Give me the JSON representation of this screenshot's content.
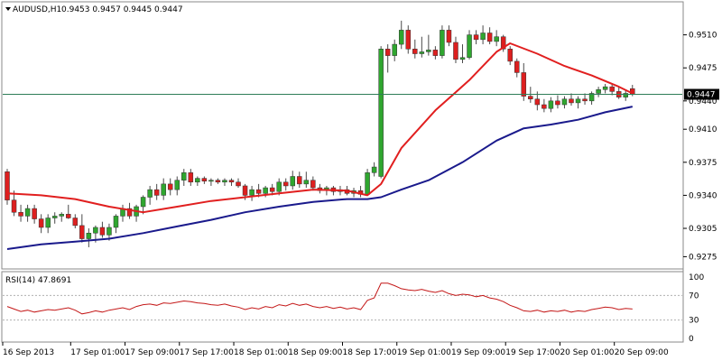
{
  "header": {
    "symbol_tf": "AUDUSD,H1",
    "ohlc_text": "0.9453 0.9457 0.9445 0.9447",
    "dropdown_icon": "triangle-down-icon"
  },
  "colors": {
    "bull": "#2fa62f",
    "bear": "#dd1f1f",
    "wick": "#4a4a4a",
    "fast_ma": "#e11f1f",
    "slow_ma": "#1a1a8c",
    "rsi": "#c41818",
    "price_line": "#2e7d57",
    "grid": "#d8d8d8",
    "frame": "#8a8a8a"
  },
  "chart_data": [
    {
      "type": "candlestick",
      "symbol": "AUDUSD",
      "timeframe": "H1",
      "current_price": "0.9447",
      "ylim": [
        0.9262,
        0.9545
      ],
      "yticks": [
        "0.9510",
        "0.9475",
        "0.9440",
        "0.9410",
        "0.9375",
        "0.9340",
        "0.9305",
        "0.9275"
      ],
      "ytick_values": [
        0.951,
        0.9475,
        0.944,
        0.941,
        0.9375,
        0.934,
        0.9305,
        0.9275
      ],
      "xticks": [
        "16 Sep 2013",
        "17 Sep 01:00",
        "17 Sep 09:00",
        "17 Sep 17:00",
        "18 Sep 01:00",
        "18 Sep 09:00",
        "18 Sep 17:00",
        "19 Sep 01:00",
        "19 Sep 09:00",
        "19 Sep 17:00",
        "20 Sep 01:00",
        "20 Sep 09:00"
      ],
      "xtick_bar_index": [
        0,
        10,
        18,
        26,
        34,
        42,
        50,
        58,
        66,
        74,
        82,
        90
      ],
      "candles": [
        [
          0.9365,
          0.9368,
          0.933,
          0.9335
        ],
        [
          0.9335,
          0.9345,
          0.9318,
          0.9322
        ],
        [
          0.9322,
          0.933,
          0.9312,
          0.9318
        ],
        [
          0.9318,
          0.933,
          0.9312,
          0.9326
        ],
        [
          0.9326,
          0.933,
          0.931,
          0.9315
        ],
        [
          0.9315,
          0.932,
          0.93,
          0.9306
        ],
        [
          0.9306,
          0.932,
          0.93,
          0.9316
        ],
        [
          0.9316,
          0.9322,
          0.931,
          0.9318
        ],
        [
          0.9318,
          0.9322,
          0.9312,
          0.932
        ],
        [
          0.932,
          0.933,
          0.9315,
          0.9316
        ],
        [
          0.9316,
          0.932,
          0.9305,
          0.9308
        ],
        [
          0.9308,
          0.932,
          0.929,
          0.9294
        ],
        [
          0.9294,
          0.9305,
          0.9285,
          0.93
        ],
        [
          0.93,
          0.9308,
          0.929,
          0.9306
        ],
        [
          0.9306,
          0.9312,
          0.9295,
          0.9298
        ],
        [
          0.9298,
          0.931,
          0.9292,
          0.9306
        ],
        [
          0.9306,
          0.932,
          0.93,
          0.9318
        ],
        [
          0.9318,
          0.933,
          0.9312,
          0.9326
        ],
        [
          0.9326,
          0.9332,
          0.9315,
          0.9318
        ],
        [
          0.9318,
          0.933,
          0.9312,
          0.9328
        ],
        [
          0.9328,
          0.934,
          0.932,
          0.9338
        ],
        [
          0.9338,
          0.935,
          0.933,
          0.9346
        ],
        [
          0.9346,
          0.9352,
          0.9335,
          0.934
        ],
        [
          0.934,
          0.9358,
          0.9335,
          0.9352
        ],
        [
          0.9352,
          0.9358,
          0.934,
          0.9346
        ],
        [
          0.9346,
          0.936,
          0.934,
          0.9356
        ],
        [
          0.9356,
          0.9368,
          0.935,
          0.9364
        ],
        [
          0.9364,
          0.9368,
          0.935,
          0.9354
        ],
        [
          0.9354,
          0.936,
          0.935,
          0.9358
        ],
        [
          0.9358,
          0.936,
          0.9352,
          0.9355
        ],
        [
          0.9355,
          0.9358,
          0.935,
          0.9356
        ],
        [
          0.9356,
          0.9358,
          0.9352,
          0.9354
        ],
        [
          0.9354,
          0.9358,
          0.935,
          0.9356
        ],
        [
          0.9356,
          0.9358,
          0.935,
          0.9354
        ],
        [
          0.9354,
          0.9358,
          0.9348,
          0.935
        ],
        [
          0.935,
          0.9352,
          0.9335,
          0.934
        ],
        [
          0.934,
          0.935,
          0.9334,
          0.9346
        ],
        [
          0.9346,
          0.9352,
          0.9338,
          0.9342
        ],
        [
          0.9342,
          0.935,
          0.9338,
          0.9348
        ],
        [
          0.9348,
          0.9352,
          0.934,
          0.9344
        ],
        [
          0.9344,
          0.9358,
          0.934,
          0.9354
        ],
        [
          0.9354,
          0.9358,
          0.9345,
          0.935
        ],
        [
          0.935,
          0.9366,
          0.9346,
          0.936
        ],
        [
          0.936,
          0.9365,
          0.9348,
          0.9352
        ],
        [
          0.9352,
          0.9365,
          0.9348,
          0.9356
        ],
        [
          0.9356,
          0.936,
          0.9345,
          0.9348
        ],
        [
          0.9348,
          0.9352,
          0.9342,
          0.9345
        ],
        [
          0.9345,
          0.935,
          0.934,
          0.9348
        ],
        [
          0.9348,
          0.935,
          0.934,
          0.9344
        ],
        [
          0.9344,
          0.935,
          0.934,
          0.9346
        ],
        [
          0.9346,
          0.935,
          0.934,
          0.9342
        ],
        [
          0.9342,
          0.9348,
          0.9338,
          0.9345
        ],
        [
          0.9345,
          0.935,
          0.9338,
          0.9341
        ],
        [
          0.9341,
          0.9368,
          0.934,
          0.9364
        ],
        [
          0.9364,
          0.9375,
          0.936,
          0.937
        ],
        [
          0.936,
          0.9498,
          0.9358,
          0.9495
        ],
        [
          0.9495,
          0.95,
          0.947,
          0.9488
        ],
        [
          0.9488,
          0.9505,
          0.9482,
          0.95
        ],
        [
          0.95,
          0.9525,
          0.9495,
          0.9515
        ],
        [
          0.9515,
          0.952,
          0.949,
          0.9495
        ],
        [
          0.9495,
          0.9505,
          0.9485,
          0.949
        ],
        [
          0.949,
          0.9508,
          0.9486,
          0.9492
        ],
        [
          0.9492,
          0.951,
          0.9488,
          0.9494
        ],
        [
          0.9494,
          0.9498,
          0.9484,
          0.9488
        ],
        [
          0.9488,
          0.952,
          0.9485,
          0.9515
        ],
        [
          0.9515,
          0.952,
          0.9498,
          0.9502
        ],
        [
          0.9502,
          0.9508,
          0.948,
          0.9484
        ],
        [
          0.9484,
          0.95,
          0.948,
          0.9486
        ],
        [
          0.9486,
          0.9515,
          0.9484,
          0.951
        ],
        [
          0.951,
          0.9515,
          0.95,
          0.9505
        ],
        [
          0.9505,
          0.952,
          0.95,
          0.9512
        ],
        [
          0.9512,
          0.9518,
          0.95,
          0.9503
        ],
        [
          0.9503,
          0.9515,
          0.9498,
          0.9508
        ],
        [
          0.9508,
          0.951,
          0.9492,
          0.9495
        ],
        [
          0.9495,
          0.9498,
          0.9478,
          0.9482
        ],
        [
          0.9482,
          0.9485,
          0.9465,
          0.947
        ],
        [
          0.947,
          0.948,
          0.944,
          0.9445
        ],
        [
          0.9445,
          0.9455,
          0.9438,
          0.9442
        ],
        [
          0.9442,
          0.945,
          0.943,
          0.9436
        ],
        [
          0.9436,
          0.9442,
          0.9428,
          0.9432
        ],
        [
          0.9432,
          0.9444,
          0.9428,
          0.944
        ],
        [
          0.944,
          0.9446,
          0.9432,
          0.9436
        ],
        [
          0.9436,
          0.9445,
          0.9432,
          0.9442
        ],
        [
          0.9442,
          0.9448,
          0.9435,
          0.9438
        ],
        [
          0.9438,
          0.9445,
          0.9432,
          0.9442
        ],
        [
          0.9442,
          0.9448,
          0.9436,
          0.944
        ],
        [
          0.944,
          0.945,
          0.9436,
          0.9448
        ],
        [
          0.9448,
          0.9455,
          0.9444,
          0.9452
        ],
        [
          0.9452,
          0.9458,
          0.9448,
          0.9455
        ],
        [
          0.9455,
          0.9458,
          0.9446,
          0.945
        ],
        [
          0.945,
          0.9455,
          0.9442,
          0.9444
        ],
        [
          0.9444,
          0.9452,
          0.944,
          0.9448
        ],
        [
          0.9453,
          0.9457,
          0.9445,
          0.9447
        ]
      ],
      "series": [
        {
          "type": "line",
          "points": [
            [
              0,
              0.9342
            ],
            [
              5,
              0.934
            ],
            [
              10,
              0.9336
            ],
            [
              15,
              0.9328
            ],
            [
              20,
              0.9322
            ],
            [
              25,
              0.9328
            ],
            [
              30,
              0.9334
            ],
            [
              35,
              0.9338
            ],
            [
              40,
              0.9342
            ],
            [
              45,
              0.9346
            ],
            [
              50,
              0.9345
            ],
            [
              53,
              0.934
            ],
            [
              55,
              0.9352
            ],
            [
              58,
              0.939
            ],
            [
              63,
              0.943
            ],
            [
              68,
              0.9462
            ],
            [
              72,
              0.9492
            ],
            [
              74,
              0.9501
            ],
            [
              78,
              0.949
            ],
            [
              82,
              0.9477
            ],
            [
              86,
              0.9467
            ],
            [
              90,
              0.9455
            ],
            [
              92,
              0.9448
            ]
          ]
        },
        {
          "type": "line",
          "points": [
            [
              0,
              0.9283
            ],
            [
              5,
              0.9288
            ],
            [
              10,
              0.9291
            ],
            [
              15,
              0.9294
            ],
            [
              20,
              0.93
            ],
            [
              25,
              0.9307
            ],
            [
              30,
              0.9314
            ],
            [
              35,
              0.9322
            ],
            [
              40,
              0.9328
            ],
            [
              45,
              0.9333
            ],
            [
              50,
              0.9336
            ],
            [
              53,
              0.9336
            ],
            [
              55,
              0.9338
            ],
            [
              58,
              0.9346
            ],
            [
              62,
              0.9356
            ],
            [
              67,
              0.9375
            ],
            [
              72,
              0.9398
            ],
            [
              76,
              0.9411
            ],
            [
              80,
              0.9415
            ],
            [
              84,
              0.942
            ],
            [
              88,
              0.9428
            ],
            [
              92,
              0.9434
            ]
          ]
        }
      ]
    },
    {
      "type": "line",
      "indicator": "RSI(14)",
      "label": "RSI(14) 47.8691",
      "ylim": [
        0,
        100
      ],
      "yticks": [
        "100",
        "70",
        "30",
        "0"
      ],
      "ytick_values": [
        100,
        70,
        30,
        0
      ],
      "levels": [
        70,
        30
      ],
      "values": [
        52,
        48,
        44,
        46,
        43,
        45,
        47,
        46,
        48,
        50,
        46,
        40,
        42,
        45,
        43,
        46,
        48,
        50,
        47,
        52,
        55,
        56,
        54,
        58,
        57,
        59,
        61,
        60,
        58,
        57,
        55,
        54,
        56,
        53,
        51,
        47,
        50,
        48,
        52,
        50,
        55,
        53,
        57,
        54,
        56,
        52,
        50,
        52,
        49,
        51,
        48,
        50,
        47,
        62,
        66,
        90,
        90,
        86,
        81,
        79,
        78,
        80,
        77,
        75,
        78,
        73,
        70,
        72,
        71,
        68,
        70,
        66,
        64,
        60,
        54,
        50,
        45,
        44,
        46,
        43,
        45,
        44,
        46,
        43,
        45,
        44,
        47,
        49,
        51,
        50,
        47,
        49,
        48
      ]
    }
  ]
}
